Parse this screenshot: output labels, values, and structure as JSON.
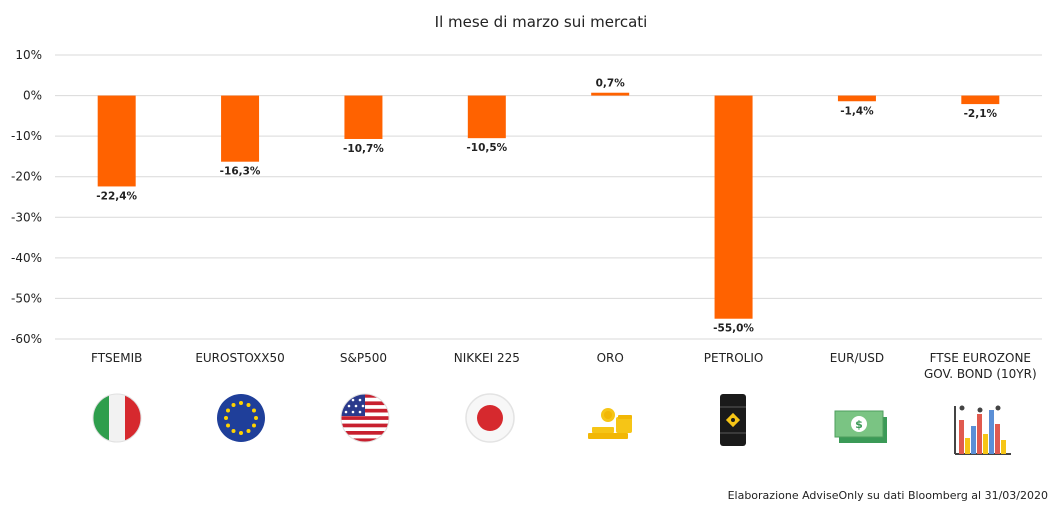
{
  "chart_data": {
    "type": "bar",
    "title": "Il mese di marzo sui mercati",
    "xlabel": "",
    "ylabel": "",
    "categories": [
      [
        "FTSEMIB"
      ],
      [
        "EUROSTOXX50"
      ],
      [
        "S&P500"
      ],
      [
        "NIKKEI 225"
      ],
      [
        "ORO"
      ],
      [
        "PETROLIO"
      ],
      [
        "EUR/USD"
      ],
      [
        "FTSE EUROZONE",
        "GOV. BOND (10YR)"
      ]
    ],
    "values": [
      -22.4,
      -16.3,
      -10.7,
      -10.5,
      0.7,
      -55.0,
      -1.4,
      -2.1
    ],
    "data_labels": [
      "-22,4%",
      "-16,3%",
      "-10,7%",
      "-10,5%",
      "0,7%",
      "-55,0%",
      "-1,4%",
      "-2,1%"
    ],
    "ylim": [
      -60,
      10
    ],
    "yticks": [
      10,
      0,
      -10,
      -20,
      -30,
      -40,
      -50,
      -60
    ],
    "ytick_labels": [
      "10%",
      "0%",
      "-10%",
      "-20%",
      "-30%",
      "-40%",
      "-50%",
      "-60%"
    ],
    "grid": true,
    "legend": "none",
    "bar_color": "#ff6200",
    "icons": [
      "italy-flag-icon",
      "eu-flag-icon",
      "usa-flag-icon",
      "japan-flag-icon",
      "gold-coins-icon",
      "oil-barrel-icon",
      "banknotes-icon",
      "bar-chart-icon"
    ]
  },
  "footer": {
    "credit": "Elaborazione AdviseOnly su dati Bloomberg al 31/03/2020"
  }
}
